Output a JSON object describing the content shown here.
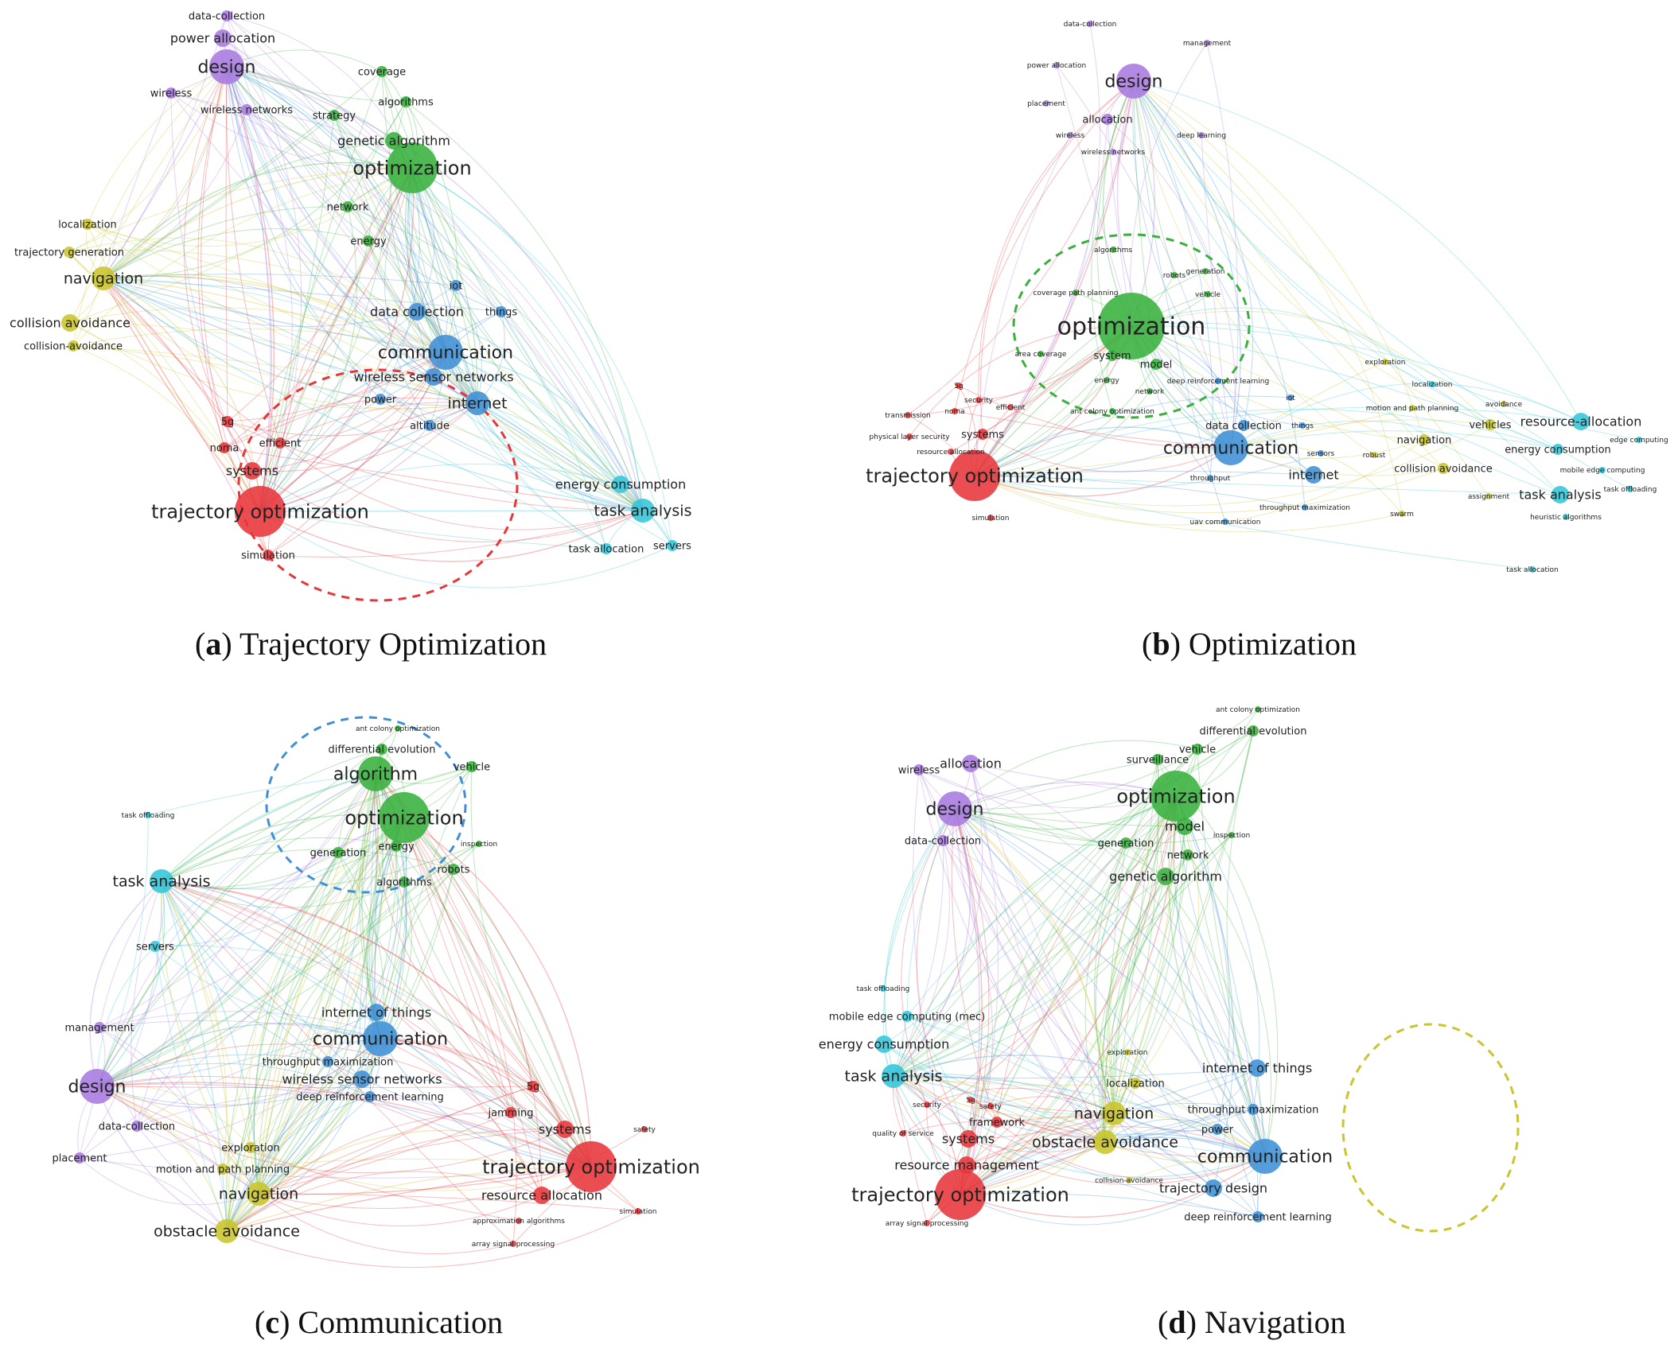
{
  "colors": {
    "red": "#e8353a",
    "green": "#38b03c",
    "blue": "#3f8fd6",
    "cyan": "#33c6d8",
    "purple": "#a77ae0",
    "yellow": "#c9c52a"
  },
  "panels": [
    {
      "id": "a",
      "letter": "a",
      "caption": "Trajectory Optimization",
      "highlight": "red",
      "nodes": [
        {
          "label": "data-collection",
          "c": "purple",
          "s": 2
        },
        {
          "label": "power allocation",
          "c": "purple",
          "s": 3
        },
        {
          "label": "design",
          "c": "purple",
          "s": 5
        },
        {
          "label": "wireless",
          "c": "purple",
          "s": 2
        },
        {
          "label": "wireless networks",
          "c": "purple",
          "s": 2
        },
        {
          "label": "coverage",
          "c": "green",
          "s": 2
        },
        {
          "label": "algorithms",
          "c": "green",
          "s": 2
        },
        {
          "label": "strategy",
          "c": "green",
          "s": 2
        },
        {
          "label": "genetic algorithm",
          "c": "green",
          "s": 3
        },
        {
          "label": "optimization",
          "c": "green",
          "s": 6
        },
        {
          "label": "network",
          "c": "green",
          "s": 2
        },
        {
          "label": "energy",
          "c": "green",
          "s": 2
        },
        {
          "label": "localization",
          "c": "yellow",
          "s": 2
        },
        {
          "label": "trajectory generation",
          "c": "yellow",
          "s": 2
        },
        {
          "label": "navigation",
          "c": "yellow",
          "s": 4
        },
        {
          "label": "collision avoidance",
          "c": "yellow",
          "s": 3
        },
        {
          "label": "collision-avoidance",
          "c": "yellow",
          "s": 2
        },
        {
          "label": "iot",
          "c": "blue",
          "s": 2
        },
        {
          "label": "data collection",
          "c": "blue",
          "s": 3
        },
        {
          "label": "things",
          "c": "blue",
          "s": 2
        },
        {
          "label": "communication",
          "c": "blue",
          "s": 5
        },
        {
          "label": "wireless sensor networks",
          "c": "blue",
          "s": 3
        },
        {
          "label": "power",
          "c": "blue",
          "s": 2
        },
        {
          "label": "internet",
          "c": "blue",
          "s": 4
        },
        {
          "label": "altitude",
          "c": "blue",
          "s": 2
        },
        {
          "label": "5g",
          "c": "red",
          "s": 2
        },
        {
          "label": "noma",
          "c": "red",
          "s": 2
        },
        {
          "label": "efficient",
          "c": "red",
          "s": 2
        },
        {
          "label": "systems",
          "c": "red",
          "s": 3
        },
        {
          "label": "trajectory optimization",
          "c": "red",
          "s": 6
        },
        {
          "label": "simulation",
          "c": "red",
          "s": 2
        },
        {
          "label": "energy consumption",
          "c": "cyan",
          "s": 3
        },
        {
          "label": "task analysis",
          "c": "cyan",
          "s": 4
        },
        {
          "label": "task allocation",
          "c": "cyan",
          "s": 2
        },
        {
          "label": "servers",
          "c": "cyan",
          "s": 2
        }
      ]
    },
    {
      "id": "b",
      "letter": "b",
      "caption": "Optimization",
      "highlight": "green",
      "nodes": [
        {
          "label": "data-collection",
          "c": "purple",
          "s": 1
        },
        {
          "label": "management",
          "c": "purple",
          "s": 1
        },
        {
          "label": "power allocation",
          "c": "purple",
          "s": 1
        },
        {
          "label": "design",
          "c": "purple",
          "s": 5
        },
        {
          "label": "placement",
          "c": "purple",
          "s": 1
        },
        {
          "label": "allocation",
          "c": "purple",
          "s": 2
        },
        {
          "label": "deep learning",
          "c": "purple",
          "s": 1
        },
        {
          "label": "wireless",
          "c": "purple",
          "s": 1
        },
        {
          "label": "wireless networks",
          "c": "purple",
          "s": 1
        },
        {
          "label": "algorithms",
          "c": "green",
          "s": 1
        },
        {
          "label": "robots",
          "c": "green",
          "s": 1
        },
        {
          "label": "generation",
          "c": "green",
          "s": 1
        },
        {
          "label": "coverage path planning",
          "c": "green",
          "s": 1
        },
        {
          "label": "vehicle",
          "c": "green",
          "s": 1
        },
        {
          "label": "optimization",
          "c": "green",
          "s": 7
        },
        {
          "label": "area coverage",
          "c": "green",
          "s": 1
        },
        {
          "label": "system",
          "c": "green",
          "s": 2
        },
        {
          "label": "model",
          "c": "green",
          "s": 2
        },
        {
          "label": "energy",
          "c": "green",
          "s": 1
        },
        {
          "label": "network",
          "c": "green",
          "s": 1
        },
        {
          "label": "deep reinforcement learning",
          "c": "blue",
          "s": 1
        },
        {
          "label": "ant colony optimization",
          "c": "green",
          "s": 1
        },
        {
          "label": "exploration",
          "c": "yellow",
          "s": 1
        },
        {
          "label": "localization",
          "c": "cyan",
          "s": 1
        },
        {
          "label": "avoidance",
          "c": "yellow",
          "s": 1
        },
        {
          "label": "motion and path planning",
          "c": "yellow",
          "s": 1
        },
        {
          "label": "5g",
          "c": "red",
          "s": 1
        },
        {
          "label": "transmission",
          "c": "red",
          "s": 1
        },
        {
          "label": "noma",
          "c": "red",
          "s": 1
        },
        {
          "label": "security",
          "c": "red",
          "s": 1
        },
        {
          "label": "efficient",
          "c": "red",
          "s": 1
        },
        {
          "label": "physical layer security",
          "c": "red",
          "s": 1
        },
        {
          "label": "systems",
          "c": "red",
          "s": 2
        },
        {
          "label": "resource allocation",
          "c": "red",
          "s": 1
        },
        {
          "label": "trajectory optimization",
          "c": "red",
          "s": 6
        },
        {
          "label": "simulation",
          "c": "red",
          "s": 1
        },
        {
          "label": "iot",
          "c": "blue",
          "s": 1
        },
        {
          "label": "data collection",
          "c": "blue",
          "s": 2
        },
        {
          "label": "things",
          "c": "blue",
          "s": 1
        },
        {
          "label": "sensors",
          "c": "blue",
          "s": 1
        },
        {
          "label": "communication",
          "c": "blue",
          "s": 5
        },
        {
          "label": "internet",
          "c": "blue",
          "s": 3
        },
        {
          "label": "throughput",
          "c": "blue",
          "s": 1
        },
        {
          "label": "throughput maximization",
          "c": "blue",
          "s": 1
        },
        {
          "label": "uav communication",
          "c": "blue",
          "s": 1
        },
        {
          "label": "navigation",
          "c": "yellow",
          "s": 2
        },
        {
          "label": "vehicles",
          "c": "yellow",
          "s": 2
        },
        {
          "label": "robust",
          "c": "yellow",
          "s": 1
        },
        {
          "label": "collision avoidance",
          "c": "yellow",
          "s": 2
        },
        {
          "label": "assignment",
          "c": "yellow",
          "s": 1
        },
        {
          "label": "swarm",
          "c": "yellow",
          "s": 1
        },
        {
          "label": "resource-allocation",
          "c": "cyan",
          "s": 3
        },
        {
          "label": "edge computing",
          "c": "cyan",
          "s": 1
        },
        {
          "label": "energy consumption",
          "c": "cyan",
          "s": 2
        },
        {
          "label": "mobile edge computing",
          "c": "cyan",
          "s": 1
        },
        {
          "label": "task offloading",
          "c": "cyan",
          "s": 1
        },
        {
          "label": "task analysis",
          "c": "cyan",
          "s": 3
        },
        {
          "label": "heuristic algorithms",
          "c": "cyan",
          "s": 1
        },
        {
          "label": "task allocation",
          "c": "cyan",
          "s": 1
        }
      ]
    },
    {
      "id": "c",
      "letter": "c",
      "caption": "Communication",
      "highlight": "blue",
      "nodes": [
        {
          "label": "ant colony optimization",
          "c": "green",
          "s": 1
        },
        {
          "label": "differential evolution",
          "c": "green",
          "s": 2
        },
        {
          "label": "algorithm",
          "c": "green",
          "s": 5
        },
        {
          "label": "vehicle",
          "c": "green",
          "s": 2
        },
        {
          "label": "optimization",
          "c": "green",
          "s": 6
        },
        {
          "label": "generation",
          "c": "green",
          "s": 2
        },
        {
          "label": "energy",
          "c": "green",
          "s": 2
        },
        {
          "label": "inspection",
          "c": "green",
          "s": 1
        },
        {
          "label": "algorithms",
          "c": "green",
          "s": 2
        },
        {
          "label": "robots",
          "c": "green",
          "s": 2
        },
        {
          "label": "task offloading",
          "c": "cyan",
          "s": 1
        },
        {
          "label": "task analysis",
          "c": "cyan",
          "s": 4
        },
        {
          "label": "servers",
          "c": "cyan",
          "s": 2
        },
        {
          "label": "management",
          "c": "purple",
          "s": 2
        },
        {
          "label": "design",
          "c": "purple",
          "s": 5
        },
        {
          "label": "data-collection",
          "c": "purple",
          "s": 2
        },
        {
          "label": "placement",
          "c": "purple",
          "s": 2
        },
        {
          "label": "internet of things",
          "c": "blue",
          "s": 3
        },
        {
          "label": "communication",
          "c": "blue",
          "s": 5
        },
        {
          "label": "throughput maximization",
          "c": "blue",
          "s": 2
        },
        {
          "label": "wireless sensor networks",
          "c": "blue",
          "s": 3
        },
        {
          "label": "deep reinforcement learning",
          "c": "blue",
          "s": 2
        },
        {
          "label": "exploration",
          "c": "yellow",
          "s": 2
        },
        {
          "label": "motion and path planning",
          "c": "yellow",
          "s": 2
        },
        {
          "label": "navigation",
          "c": "yellow",
          "s": 4
        },
        {
          "label": "obstacle avoidance",
          "c": "yellow",
          "s": 4
        },
        {
          "label": "5g",
          "c": "red",
          "s": 2
        },
        {
          "label": "jamming",
          "c": "red",
          "s": 2
        },
        {
          "label": "systems",
          "c": "red",
          "s": 3
        },
        {
          "label": "safety",
          "c": "red",
          "s": 1
        },
        {
          "label": "trajectory optimization",
          "c": "red",
          "s": 6
        },
        {
          "label": "resource allocation",
          "c": "red",
          "s": 3
        },
        {
          "label": "approximation algorithms",
          "c": "red",
          "s": 1
        },
        {
          "label": "simulation",
          "c": "red",
          "s": 1
        },
        {
          "label": "array signal processing",
          "c": "red",
          "s": 1
        }
      ]
    },
    {
      "id": "d",
      "letter": "d",
      "caption": "Navigation",
      "highlight": "yellow",
      "nodes": [
        {
          "label": "ant colony optimization",
          "c": "green",
          "s": 1
        },
        {
          "label": "differential evolution",
          "c": "green",
          "s": 2
        },
        {
          "label": "vehicle",
          "c": "green",
          "s": 2
        },
        {
          "label": "surveillance",
          "c": "green",
          "s": 2
        },
        {
          "label": "optimization",
          "c": "green",
          "s": 6
        },
        {
          "label": "model",
          "c": "green",
          "s": 3
        },
        {
          "label": "inspection",
          "c": "green",
          "s": 1
        },
        {
          "label": "generation",
          "c": "green",
          "s": 2
        },
        {
          "label": "network",
          "c": "green",
          "s": 2
        },
        {
          "label": "genetic algorithm",
          "c": "green",
          "s": 3
        },
        {
          "label": "wireless",
          "c": "purple",
          "s": 2
        },
        {
          "label": "allocation",
          "c": "purple",
          "s": 3
        },
        {
          "label": "design",
          "c": "purple",
          "s": 5
        },
        {
          "label": "data-collection",
          "c": "purple",
          "s": 2
        },
        {
          "label": "task offloading",
          "c": "cyan",
          "s": 1
        },
        {
          "label": "mobile edge computing (mec)",
          "c": "cyan",
          "s": 2
        },
        {
          "label": "energy consumption",
          "c": "cyan",
          "s": 3
        },
        {
          "label": "task analysis",
          "c": "cyan",
          "s": 4
        },
        {
          "label": "security",
          "c": "red",
          "s": 1
        },
        {
          "label": "5g",
          "c": "red",
          "s": 1
        },
        {
          "label": "safety",
          "c": "red",
          "s": 1
        },
        {
          "label": "framework",
          "c": "red",
          "s": 2
        },
        {
          "label": "quality of service",
          "c": "red",
          "s": 1
        },
        {
          "label": "systems",
          "c": "red",
          "s": 3
        },
        {
          "label": "resource management",
          "c": "red",
          "s": 3
        },
        {
          "label": "trajectory optimization",
          "c": "red",
          "s": 6
        },
        {
          "label": "array signal processing",
          "c": "red",
          "s": 1
        },
        {
          "label": "exploration",
          "c": "yellow",
          "s": 1
        },
        {
          "label": "localization",
          "c": "yellow",
          "s": 2
        },
        {
          "label": "navigation",
          "c": "yellow",
          "s": 4
        },
        {
          "label": "obstacle avoidance",
          "c": "yellow",
          "s": 4
        },
        {
          "label": "collision-avoidance",
          "c": "yellow",
          "s": 1
        },
        {
          "label": "internet of things",
          "c": "blue",
          "s": 3
        },
        {
          "label": "throughput maximization",
          "c": "blue",
          "s": 2
        },
        {
          "label": "power",
          "c": "blue",
          "s": 2
        },
        {
          "label": "communication",
          "c": "blue",
          "s": 5
        },
        {
          "label": "trajectory design",
          "c": "blue",
          "s": 3
        },
        {
          "label": "deep reinforcement learning",
          "c": "blue",
          "s": 2
        }
      ]
    }
  ]
}
